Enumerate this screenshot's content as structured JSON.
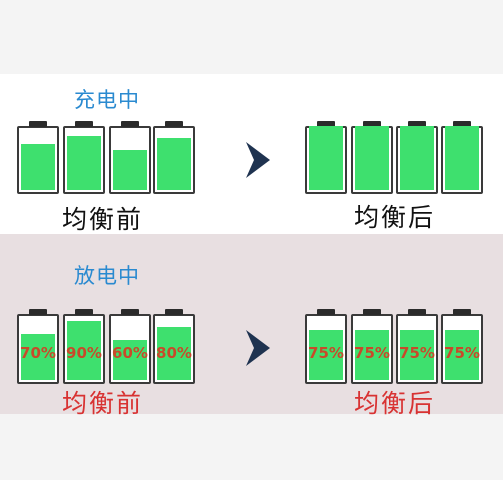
{
  "colors": {
    "battery_fill": "#3ee06e",
    "title_blue": "#2a8ad0",
    "caption_red": "#d83232",
    "pct_red": "#c84a2a",
    "arrow": "#1f3350",
    "discharge_bg": "#e8dfe1"
  },
  "charging": {
    "title": "充电中",
    "before": {
      "caption": "均衡前",
      "levels": [
        0.72,
        0.85,
        0.62,
        0.82
      ]
    },
    "after": {
      "caption": "均衡后",
      "levels": [
        1.0,
        1.0,
        1.0,
        1.0
      ]
    }
  },
  "discharging": {
    "title": "放电中",
    "before": {
      "caption": "均衡前",
      "levels": [
        0.7,
        0.9,
        0.6,
        0.8
      ],
      "labels": [
        "70%",
        "90%",
        "60%",
        "80%"
      ]
    },
    "after": {
      "caption": "均衡后",
      "levels": [
        0.75,
        0.75,
        0.75,
        0.75
      ],
      "labels": [
        "75%",
        "75%",
        "75%",
        "75%"
      ]
    }
  },
  "icons": {
    "arrow": "right-arrow-icon"
  }
}
